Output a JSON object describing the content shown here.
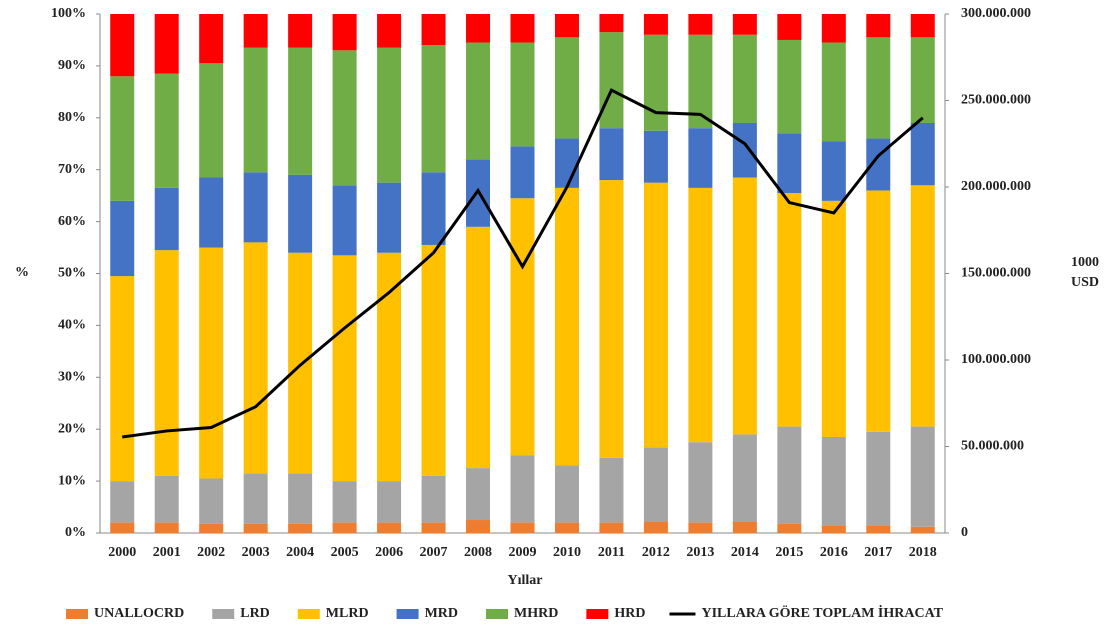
{
  "chart_data": {
    "type": "stacked_bar_line",
    "x_label": "Yıllar",
    "y_label": "%",
    "y2_label": "1000 USD",
    "categories": [
      "2000",
      "2001",
      "2002",
      "2003",
      "2004",
      "2005",
      "2006",
      "2007",
      "2008",
      "2009",
      "2010",
      "2011",
      "2012",
      "2013",
      "2014",
      "2015",
      "2016",
      "2017",
      "2018"
    ],
    "series": [
      {
        "name": "UNALLOCRD",
        "color": "#ed7d31",
        "values": [
          2,
          2,
          1.8,
          1.8,
          1.8,
          2,
          2,
          2,
          2.5,
          2,
          2,
          2,
          2.2,
          2,
          2.2,
          1.8,
          1.5,
          1.5,
          1.2
        ]
      },
      {
        "name": "LRD",
        "color": "#a5a5a5",
        "values": [
          8,
          9,
          8.7,
          9.7,
          9.7,
          8,
          8,
          9,
          10,
          13,
          11,
          12.5,
          14.3,
          15.5,
          16.8,
          18.7,
          17,
          18,
          19.3
        ]
      },
      {
        "name": "MLRD",
        "color": "#ffc000",
        "values": [
          39.5,
          43.5,
          44.5,
          44.5,
          42.5,
          43.5,
          44,
          44.5,
          46.5,
          49.5,
          53.5,
          53.5,
          51,
          49,
          49.5,
          45,
          45.5,
          46.5,
          46.5
        ]
      },
      {
        "name": "MRD",
        "color": "#4472c4",
        "values": [
          14.5,
          12,
          13.5,
          13.5,
          15,
          13.5,
          13.5,
          14,
          13,
          10,
          9.5,
          10,
          10,
          11.5,
          10.5,
          11.5,
          11.5,
          10,
          12
        ]
      },
      {
        "name": "MHRD",
        "color": "#70ad47",
        "values": [
          24,
          22,
          22,
          24,
          24.5,
          26,
          26,
          24.5,
          22.5,
          20,
          19.5,
          18.5,
          18.5,
          18,
          17,
          18,
          19,
          19.5,
          16.5
        ]
      },
      {
        "name": "HRD",
        "color": "#ff0000",
        "values": [
          12,
          11.5,
          9.5,
          6.5,
          6.5,
          7,
          6.5,
          6,
          5.5,
          5.5,
          4.5,
          3.5,
          4,
          4,
          4,
          5,
          5.5,
          4.5,
          4.5
        ]
      },
      {
        "name": "YILLARA GÖRE TOPLAM İHRACAT",
        "color": "#000000",
        "axis": "y2",
        "values": [
          55500000,
          59000000,
          61000000,
          73000000,
          97000000,
          118500000,
          139000000,
          162000000,
          198000000,
          154000000,
          200000000,
          256000000,
          243000000,
          242000000,
          225000000,
          191000000,
          185000000,
          218000000,
          240000000
        ]
      }
    ],
    "ylim": [
      0,
      100
    ],
    "yticks": [
      {
        "value": 0,
        "label": "0%"
      },
      {
        "value": 10,
        "label": "10%"
      },
      {
        "value": 20,
        "label": "20%"
      },
      {
        "value": 30,
        "label": "30%"
      },
      {
        "value": 40,
        "label": "40%"
      },
      {
        "value": 50,
        "label": "50%"
      },
      {
        "value": 60,
        "label": "60%"
      },
      {
        "value": 70,
        "label": "70%"
      },
      {
        "value": 80,
        "label": "80%"
      },
      {
        "value": 90,
        "label": "90%"
      },
      {
        "value": 100,
        "label": "100%"
      }
    ],
    "y2lim": [
      0,
      300000000
    ],
    "y2ticks": [
      0,
      {
        "value": 50000000,
        "label": "50.000.000"
      },
      {
        "value": 100000000,
        "label": "100.000.000"
      },
      {
        "value": 150000000,
        "label": "150.000.000"
      },
      {
        "value": 200000000,
        "label": "200.000.000"
      },
      {
        "value": 250000000,
        "label": "250.000.000"
      },
      {
        "value": 300000000,
        "label": "300.000.000"
      }
    ],
    "legend": "bottom"
  }
}
